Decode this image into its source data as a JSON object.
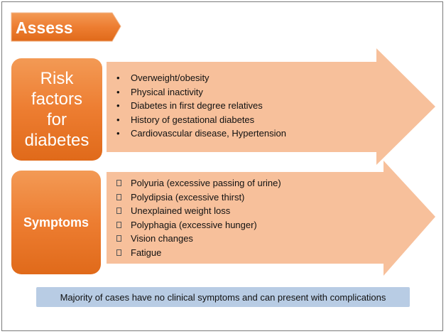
{
  "colors": {
    "orange": "#ed7d31",
    "peach_arrow": "#f7c09b",
    "note_blue": "#b8cce4"
  },
  "assess": {
    "label": "Assess"
  },
  "risk": {
    "title_lines": [
      "Risk",
      "factors",
      "for",
      "diabetes"
    ],
    "bullet_glyph": "•",
    "items": [
      "Overweight/obesity",
      "Physical inactivity",
      "Diabetes in first degree relatives",
      "History of gestational diabetes",
      "Cardiovascular disease, Hypertension"
    ]
  },
  "symptoms": {
    "title": "Symptoms",
    "bullet_icon": "box-bullet-icon",
    "items": [
      "Polyuria (excessive passing of urine)",
      "Polydipsia (excessive thirst)",
      "Unexplained weight loss",
      "Polyphagia (excessive hunger)",
      "Vision changes",
      "Fatigue"
    ]
  },
  "note": {
    "text": "Majority of cases have no clinical symptoms and can present with complications"
  }
}
